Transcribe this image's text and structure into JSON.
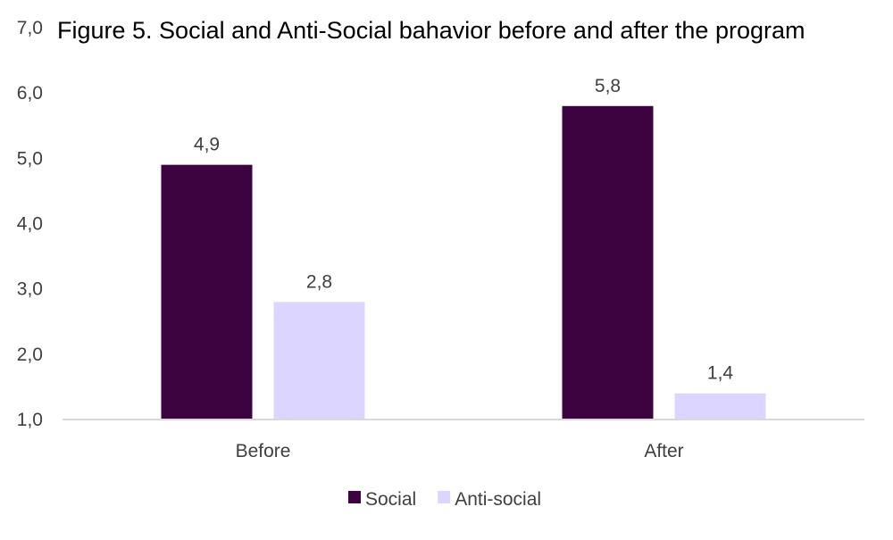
{
  "chart_data": {
    "type": "bar",
    "title": "Figure 5. Social and Anti-Social bahavior before and after the program",
    "xlabel": "",
    "ylabel": "",
    "categories": [
      "Before",
      "After"
    ],
    "series": [
      {
        "name": "Social",
        "values": [
          4.9,
          5.8
        ],
        "labels": [
          "4,9",
          "5,8"
        ],
        "color": "#3D0340"
      },
      {
        "name": "Anti-social",
        "values": [
          2.8,
          1.4
        ],
        "labels": [
          "2,8",
          "1,4"
        ],
        "color": "#DCD5FF"
      }
    ],
    "ylim": [
      1,
      7
    ],
    "yticks": [
      1,
      2,
      3,
      4,
      5,
      6,
      7
    ],
    "ytick_labels": [
      "1,0",
      "2,0",
      "3,0",
      "4,0",
      "5,0",
      "6,0",
      "7,0"
    ],
    "grid": false,
    "legend_position": "bottom"
  },
  "colors": {
    "axis_line": "#D9D9D9",
    "text": "#404040",
    "title": "#000000"
  }
}
